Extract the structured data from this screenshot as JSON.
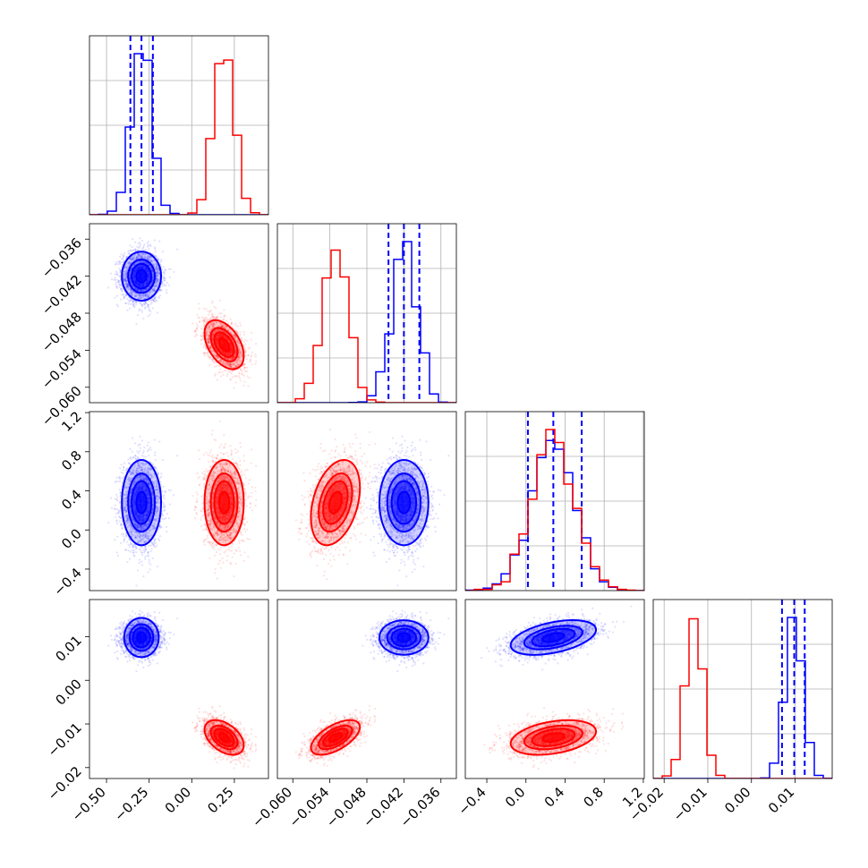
{
  "chart_data": {
    "type": "corner",
    "colors": {
      "blue": "#0000ff",
      "red": "#ff0000"
    },
    "parameters": [
      {
        "range": [
          -0.6,
          0.45
        ],
        "ticks": [
          -0.5,
          -0.25,
          0.0,
          0.25
        ],
        "tick_labels": [
          "−0.50",
          "−0.25",
          "0.00",
          "0.25"
        ]
      },
      {
        "range": [
          -0.0625,
          -0.0335
        ],
        "ticks": [
          -0.06,
          -0.054,
          -0.048,
          -0.042,
          -0.036
        ],
        "tick_labels": [
          "−0.060",
          "−0.054",
          "−0.048",
          "−0.042",
          "−0.036"
        ]
      },
      {
        "range": [
          -0.62,
          1.21
        ],
        "ticks": [
          -0.4,
          0.0,
          0.4,
          0.8,
          1.2
        ],
        "tick_labels": [
          "−0.4",
          "0.0",
          "0.4",
          "0.8",
          "1.2"
        ]
      },
      {
        "range": [
          -0.0225,
          0.0185
        ],
        "ticks": [
          -0.02,
          -0.01,
          0.0,
          0.01
        ],
        "tick_labels": [
          "−0.02",
          "−0.01",
          "0.00",
          "0.01"
        ]
      }
    ],
    "series": [
      {
        "color": "blue",
        "mean": [
          -0.295,
          -0.042,
          0.28,
          0.0098
        ],
        "sd": [
          0.058,
          0.002,
          0.22,
          0.002
        ],
        "corr": [
          [
            0,
            1,
            0.0
          ],
          [
            0,
            2,
            0.0
          ],
          [
            0,
            3,
            0.0
          ],
          [
            1,
            2,
            0.0
          ],
          [
            1,
            3,
            0.0
          ],
          [
            2,
            3,
            0.45
          ]
        ],
        "quantiles": [
          [
            -0.36,
            -0.295,
            -0.228
          ],
          [
            -0.0445,
            -0.042,
            -0.0395
          ],
          [
            0.02,
            0.28,
            0.57
          ],
          [
            0.007,
            0.0098,
            0.0122
          ]
        ]
      },
      {
        "color": "red",
        "mean": [
          0.19,
          -0.0531,
          0.28,
          -0.0131
        ],
        "sd": [
          0.058,
          0.002,
          0.22,
          0.002
        ],
        "corr": [
          [
            0,
            1,
            -0.45
          ],
          [
            0,
            2,
            0.0
          ],
          [
            0,
            3,
            -0.45
          ],
          [
            1,
            2,
            0.35
          ],
          [
            1,
            3,
            0.6
          ],
          [
            2,
            3,
            0.35
          ]
        ],
        "quantiles": []
      }
    ],
    "grid": true,
    "legend": "none"
  }
}
